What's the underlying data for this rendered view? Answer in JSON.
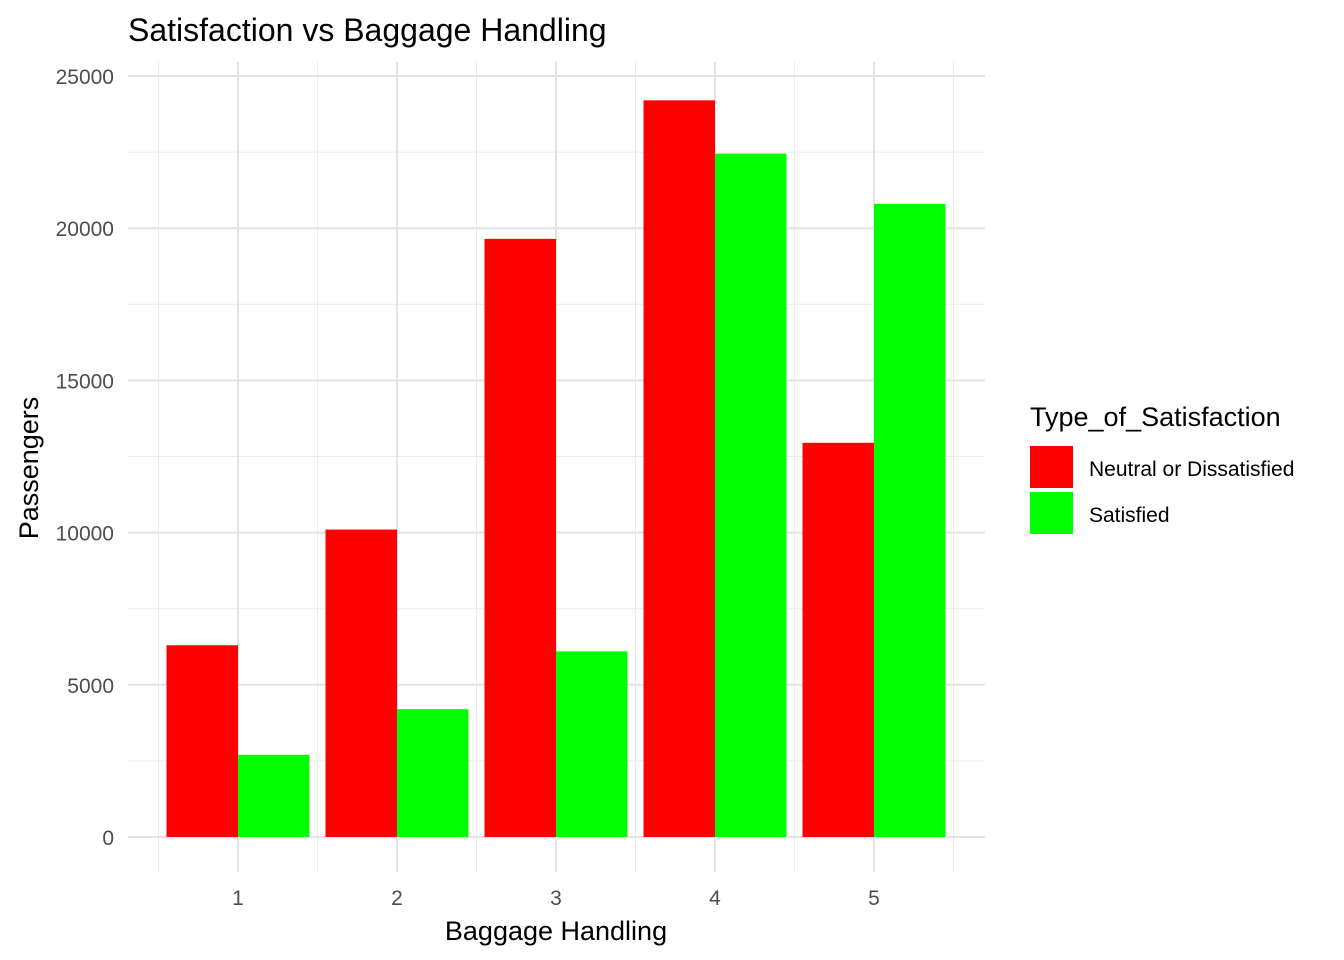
{
  "chart_data": {
    "type": "bar",
    "title": "Satisfaction vs Baggage Handling",
    "xlabel": "Baggage Handling",
    "ylabel": "Passengers",
    "categories": [
      "1",
      "2",
      "3",
      "4",
      "5"
    ],
    "series": [
      {
        "name": "Neutral or Dissatisfied",
        "color": "#ff0000",
        "values": [
          6300,
          10100,
          19650,
          24200,
          12950
        ]
      },
      {
        "name": "Satisfied",
        "color": "#00ff00",
        "values": [
          2700,
          4200,
          6100,
          22450,
          20800
        ]
      }
    ],
    "ylim": [
      0,
      25000
    ],
    "yticks": [
      "0",
      "5000",
      "10000",
      "15000",
      "20000",
      "25000"
    ],
    "grid": true,
    "legend": {
      "title": "Type_of_Satisfaction",
      "position": "right"
    }
  }
}
